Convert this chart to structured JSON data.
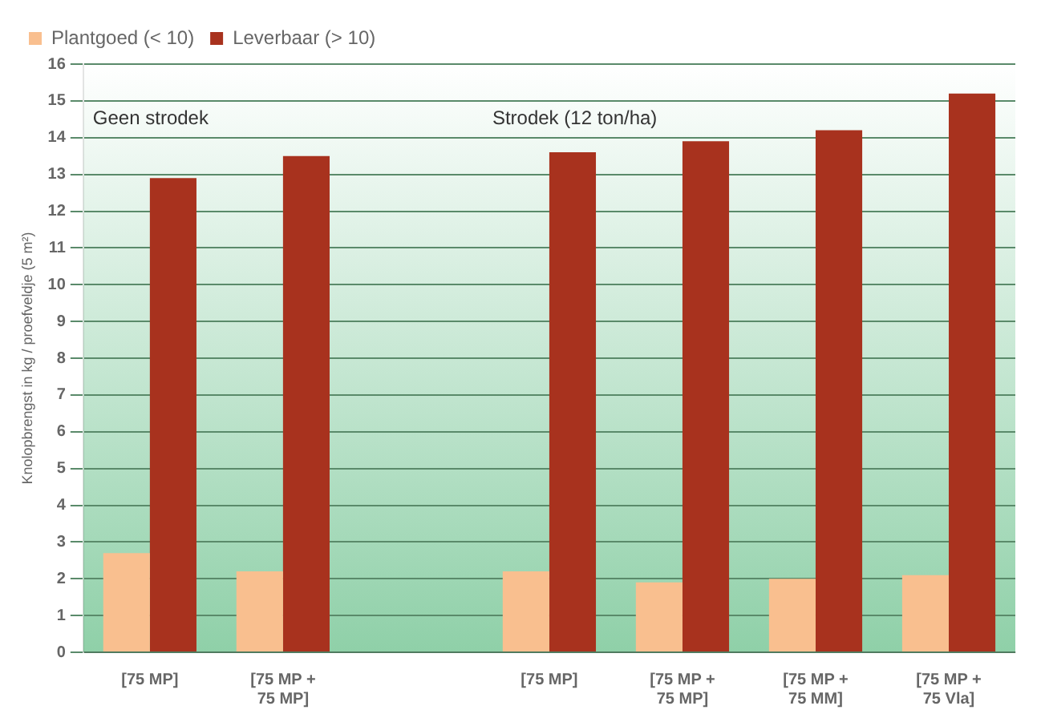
{
  "chart_data": {
    "type": "bar",
    "ylabel": "Knolopbrengst in kg / proefveldje (5 m²)",
    "categories": [
      "[75 MP]",
      "[75 MP + 75 MP]",
      null,
      "[75 MP]",
      "[75 MP + 75 MP]",
      "[75 MP + 75 MM]",
      "[75 MP + 75 Vla]"
    ],
    "series": [
      {
        "name": "Plantgoed (< 10)",
        "color": "#f9bf8f",
        "values": [
          2.7,
          2.2,
          null,
          2.2,
          1.9,
          2.0,
          2.1
        ]
      },
      {
        "name": "Leverbaar (> 10)",
        "color": "#a8321e",
        "values": [
          12.9,
          13.5,
          null,
          13.6,
          13.9,
          14.2,
          15.2
        ]
      }
    ],
    "ylim": [
      0,
      16
    ],
    "yticks": [
      0,
      1,
      2,
      3,
      4,
      5,
      6,
      7,
      8,
      9,
      10,
      11,
      12,
      13,
      14,
      15,
      16
    ],
    "annotations": [
      "Geen strodek",
      "Strodek (12 ton/ha)"
    ],
    "grid": "y",
    "legend": "top left"
  }
}
